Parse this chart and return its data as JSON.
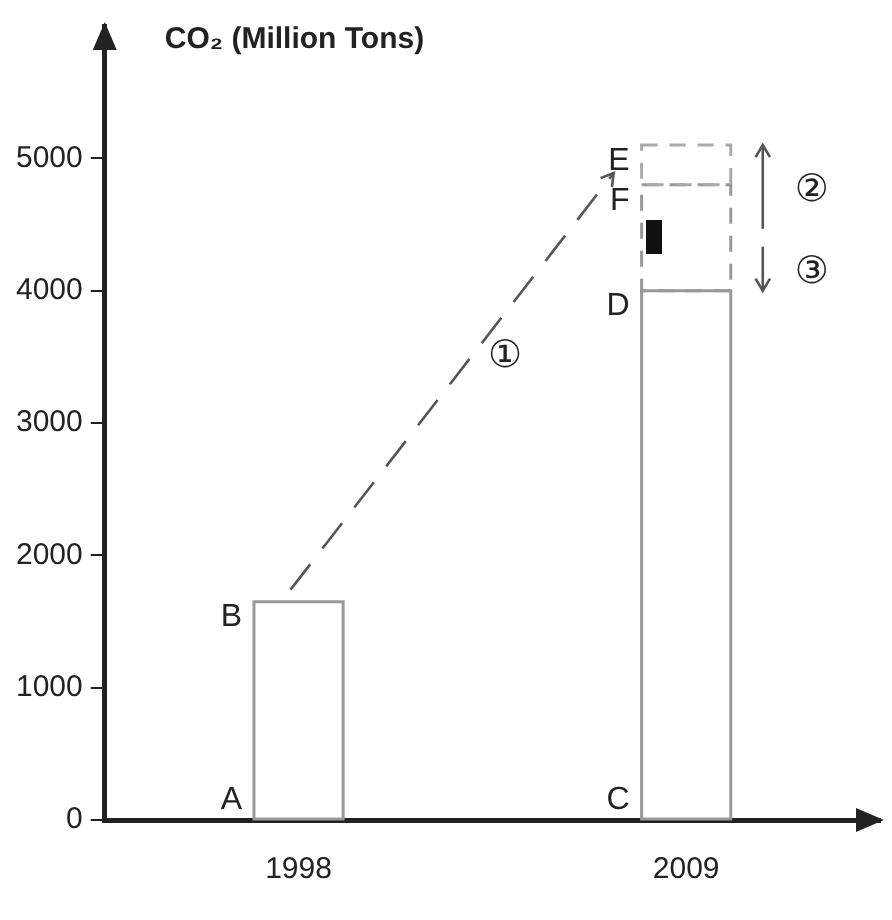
{
  "chart_data": {
    "type": "bar",
    "ylabel": "CO₂ (Million Tons)",
    "categories": [
      "1998",
      "2009"
    ],
    "stacked": true,
    "ylim": [
      0,
      6000
    ],
    "yticks": [
      0,
      1000,
      2000,
      3000,
      4000,
      5000
    ],
    "series": [
      {
        "color": "#999999",
        "values": [
          1650,
          4000
        ],
        "line_style": "solid"
      },
      {
        "color": "#999999",
        "values": [
          null,
          800
        ],
        "line_style": "dashed"
      },
      {
        "color": "#aaaaaa",
        "values": [
          null,
          300
        ],
        "line_style": "dashed"
      }
    ],
    "annotations": [
      {
        "text": "A",
        "x": "1998",
        "y": 0
      },
      {
        "text": "B",
        "x": "1998",
        "y": 1650
      },
      {
        "text": "C",
        "x": "2009",
        "y": 0
      },
      {
        "text": "D",
        "x": "2009",
        "y": 4000
      },
      {
        "text": "E",
        "x": "2009",
        "y": 5100
      },
      {
        "text": "F",
        "x": "2009",
        "y": 4800
      },
      "①",
      "②",
      "③"
    ]
  }
}
